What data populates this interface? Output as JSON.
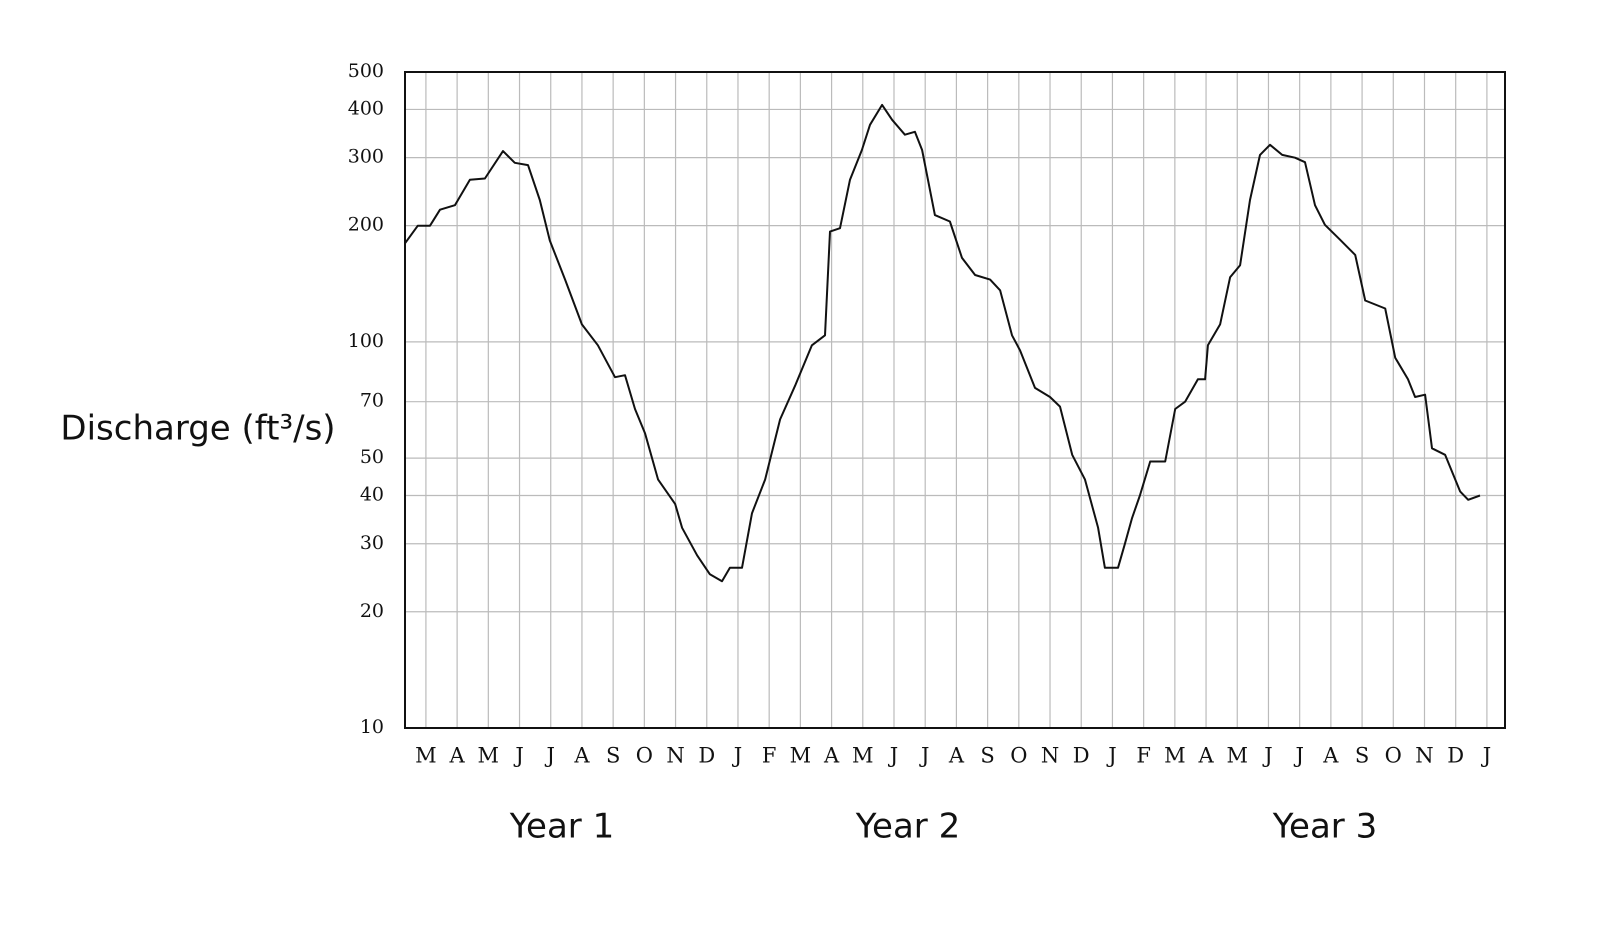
{
  "chart_data": {
    "type": "line",
    "y_label": "Discharge (ft³/s)",
    "x_group_labels": [
      "Year 1",
      "Year 2",
      "Year 3"
    ],
    "log_y": true,
    "grid": true,
    "color": "#111111",
    "ylim": [
      10,
      500
    ],
    "yticks": [
      10,
      20,
      30,
      40,
      50,
      70,
      100,
      200,
      300,
      400,
      500
    ],
    "xlim": [
      -0.67,
      34.58
    ],
    "xticks": [
      {
        "value": 0,
        "label": "M"
      },
      {
        "value": 1,
        "label": "A"
      },
      {
        "value": 2,
        "label": "M"
      },
      {
        "value": 3,
        "label": "J"
      },
      {
        "value": 4,
        "label": "J"
      },
      {
        "value": 5,
        "label": "A"
      },
      {
        "value": 6,
        "label": "S"
      },
      {
        "value": 7,
        "label": "O"
      },
      {
        "value": 8,
        "label": "N"
      },
      {
        "value": 9,
        "label": "D"
      },
      {
        "value": 10,
        "label": "J"
      },
      {
        "value": 11,
        "label": "F"
      },
      {
        "value": 12,
        "label": "M"
      },
      {
        "value": 13,
        "label": "A"
      },
      {
        "value": 14,
        "label": "M"
      },
      {
        "value": 15,
        "label": "J"
      },
      {
        "value": 16,
        "label": "J"
      },
      {
        "value": 17,
        "label": "A"
      },
      {
        "value": 18,
        "label": "S"
      },
      {
        "value": 19,
        "label": "O"
      },
      {
        "value": 20,
        "label": "N"
      },
      {
        "value": 21,
        "label": "D"
      },
      {
        "value": 22,
        "label": "J"
      },
      {
        "value": 23,
        "label": "F"
      },
      {
        "value": 24,
        "label": "M"
      },
      {
        "value": 25,
        "label": "A"
      },
      {
        "value": 26,
        "label": "M"
      },
      {
        "value": 27,
        "label": "J"
      },
      {
        "value": 28,
        "label": "J"
      },
      {
        "value": 29,
        "label": "A"
      },
      {
        "value": 30,
        "label": "S"
      },
      {
        "value": 31,
        "label": "O"
      },
      {
        "value": 32,
        "label": "N"
      },
      {
        "value": 33,
        "label": "D"
      },
      {
        "value": 34,
        "label": "J"
      }
    ],
    "x": [
      -0.67,
      -0.26,
      0.13,
      0.45,
      0.93,
      1.41,
      1.89,
      2.47,
      2.85,
      3.27,
      3.65,
      3.97,
      4.46,
      5.0,
      5.51,
      6.06,
      6.38,
      6.7,
      7.02,
      7.44,
      7.99,
      8.21,
      8.69,
      9.1,
      9.49,
      9.74,
      10.13,
      10.45,
      10.87,
      11.35,
      11.83,
      12.37,
      12.79,
      12.95,
      13.27,
      13.59,
      13.97,
      14.23,
      14.62,
      14.94,
      15.35,
      15.67,
      15.9,
      16.31,
      16.79,
      17.18,
      17.6,
      18.08,
      18.4,
      18.78,
      19.04,
      19.52,
      20.0,
      20.32,
      20.71,
      21.12,
      21.54,
      21.76,
      22.18,
      22.4,
      22.63,
      22.88,
      23.21,
      23.69,
      24.01,
      24.33,
      24.74,
      24.97,
      25.06,
      25.45,
      25.77,
      26.09,
      26.41,
      26.73,
      27.05,
      27.44,
      27.85,
      28.17,
      28.49,
      28.81,
      29.29,
      29.78,
      30.1,
      30.42,
      30.74,
      31.06,
      31.47,
      31.7,
      32.02,
      32.24,
      32.66,
      33.14,
      33.4,
      33.78
    ],
    "values": [
      180,
      200,
      200,
      220,
      226,
      263,
      265,
      312,
      291,
      287,
      233,
      183,
      145,
      111,
      98,
      81,
      82,
      67,
      58,
      44,
      38,
      33,
      28,
      25,
      24,
      26,
      26,
      36,
      44,
      63,
      77,
      98,
      104,
      193,
      197,
      263,
      314,
      365,
      411,
      376,
      344,
      350,
      314,
      213,
      205,
      165,
      149,
      145,
      136,
      104,
      95,
      76,
      72,
      68,
      51,
      44,
      33,
      26,
      26,
      30,
      35,
      40,
      49,
      49,
      67,
      70,
      80,
      80,
      98,
      111,
      147,
      158,
      233,
      305,
      324,
      305,
      300,
      292,
      226,
      201,
      184,
      168,
      128,
      125,
      122,
      91,
      80,
      72,
      73,
      53,
      51,
      41,
      39,
      40
    ]
  }
}
